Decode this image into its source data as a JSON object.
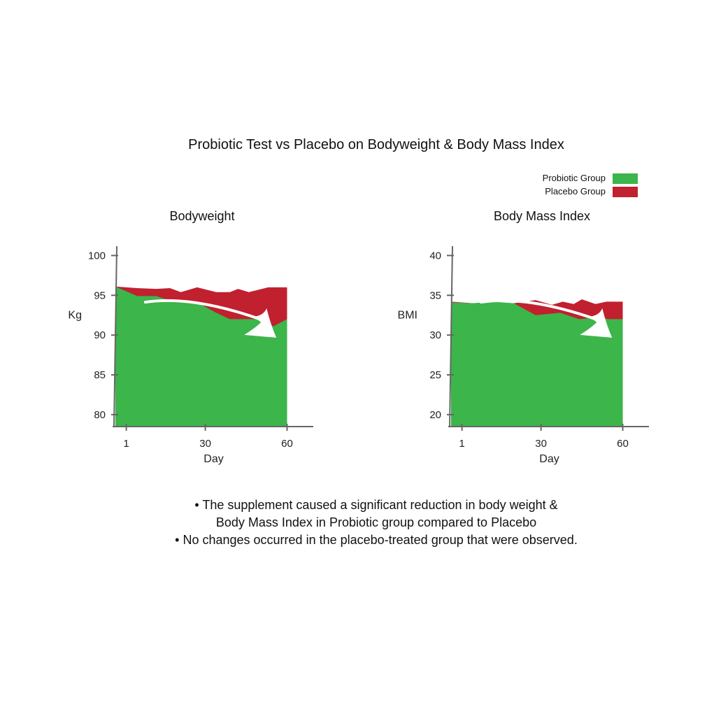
{
  "title": "Probiotic Test vs Placebo on Bodyweight & Body Mass Index",
  "legend": [
    {
      "label": "Probiotic Group",
      "color": "#3cb54a"
    },
    {
      "label": "Placebo Group",
      "color": "#c1202f"
    }
  ],
  "chart_data": [
    {
      "type": "area",
      "title": "Bodyweight",
      "xlabel": "Day",
      "ylabel": "Kg",
      "xticks": [
        1,
        30,
        60
      ],
      "yticks": [
        80,
        85,
        90,
        95,
        100
      ],
      "xlim": [
        -3,
        65
      ],
      "ylim": [
        78.5,
        101
      ],
      "series": [
        {
          "name": "Placebo Group",
          "color": "#c1202f",
          "x": [
            -3,
            5,
            12,
            17,
            21,
            27,
            34,
            39,
            42,
            46,
            53,
            60
          ],
          "y": [
            96.1,
            95.9,
            95.8,
            95.9,
            95.4,
            96.0,
            95.4,
            95.4,
            95.8,
            95.4,
            96.0,
            96.0
          ]
        },
        {
          "name": "Probiotic Group",
          "color": "#3cb54a",
          "x": [
            -3,
            5,
            12,
            19,
            27,
            34,
            39,
            44,
            50,
            55,
            60
          ],
          "y": [
            96.1,
            94.9,
            94.9,
            94.1,
            94.1,
            92.8,
            92.0,
            92.0,
            92.0,
            91.1,
            92.0
          ]
        }
      ],
      "annotation": "trend-arrow"
    },
    {
      "type": "area",
      "title": "Body Mass Index",
      "xlabel": "Day",
      "ylabel": "BMI",
      "xticks": [
        1,
        30,
        60
      ],
      "yticks": [
        20,
        25,
        30,
        35,
        40
      ],
      "xlim": [
        -3,
        65
      ],
      "ylim": [
        18.5,
        41
      ],
      "series": [
        {
          "name": "Placebo Group",
          "color": "#c1202f",
          "x": [
            -3,
            5,
            12,
            20,
            28,
            34,
            38,
            42,
            45,
            50,
            54,
            60
          ],
          "y": [
            34.2,
            34.0,
            34.1,
            34.0,
            34.4,
            33.8,
            34.2,
            33.9,
            34.5,
            33.9,
            34.2,
            34.2
          ]
        },
        {
          "name": "Probiotic Group",
          "color": "#3cb54a",
          "x": [
            -3,
            5,
            12,
            20,
            28,
            37,
            44,
            50,
            55,
            60
          ],
          "y": [
            34.1,
            34.0,
            34.2,
            34.0,
            32.5,
            32.8,
            32.0,
            32.2,
            32.0,
            32.0
          ]
        }
      ],
      "annotation": "trend-arrow"
    }
  ],
  "notes": [
    "•  The supplement caused a significant reduction in body weight &",
    "Body Mass Index in Probiotic group compared to Placebo",
    "• No changes occurred in the placebo-treated group that were observed."
  ]
}
